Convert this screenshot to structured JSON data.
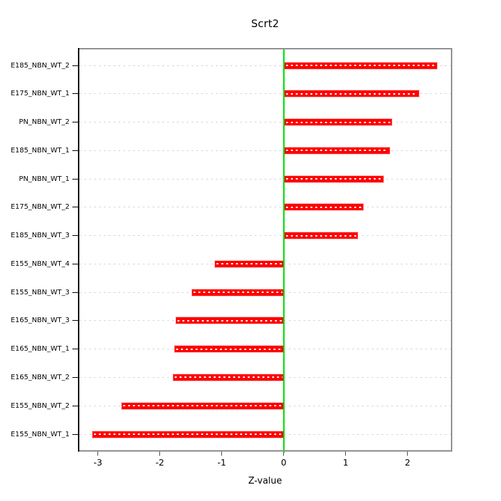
{
  "chart_data": {
    "type": "bar",
    "orientation": "horizontal",
    "title": "Scrt2",
    "xlabel": "Z-value",
    "ylabel": "",
    "legend": "none",
    "grid": "horizontal-dashed-per-category",
    "categories": [
      "E185_NBN_WT_2",
      "E175_NBN_WT_1",
      "PN_NBN_WT_2",
      "E185_NBN_WT_1",
      "PN_NBN_WT_1",
      "E175_NBN_WT_2",
      "E185_NBN_WT_3",
      "E155_NBN_WT_4",
      "E155_NBN_WT_3",
      "E165_NBN_WT_3",
      "E165_NBN_WT_1",
      "E165_NBN_WT_2",
      "E155_NBN_WT_2",
      "E155_NBN_WT_1"
    ],
    "values": [
      2.47,
      2.18,
      1.75,
      1.71,
      1.61,
      1.28,
      1.19,
      -1.12,
      -1.49,
      -1.75,
      -1.77,
      -1.79,
      -2.63,
      -3.1
    ],
    "x_ticks": [
      -3,
      -2,
      -1,
      0,
      1,
      2
    ],
    "xlim": [
      -3.3,
      2.7
    ],
    "zero_reference_line": 0,
    "colors": {
      "bar": "#fe0000",
      "bar_edge": "#ffb3b3",
      "bar_inner_dash": "#ffffff",
      "zero_line": "#00dd00",
      "grid_line": "#d8d8d8",
      "box": "#8f8f8f",
      "y_axis": "#000000",
      "text": "#000000",
      "background": "#ffffff"
    }
  }
}
